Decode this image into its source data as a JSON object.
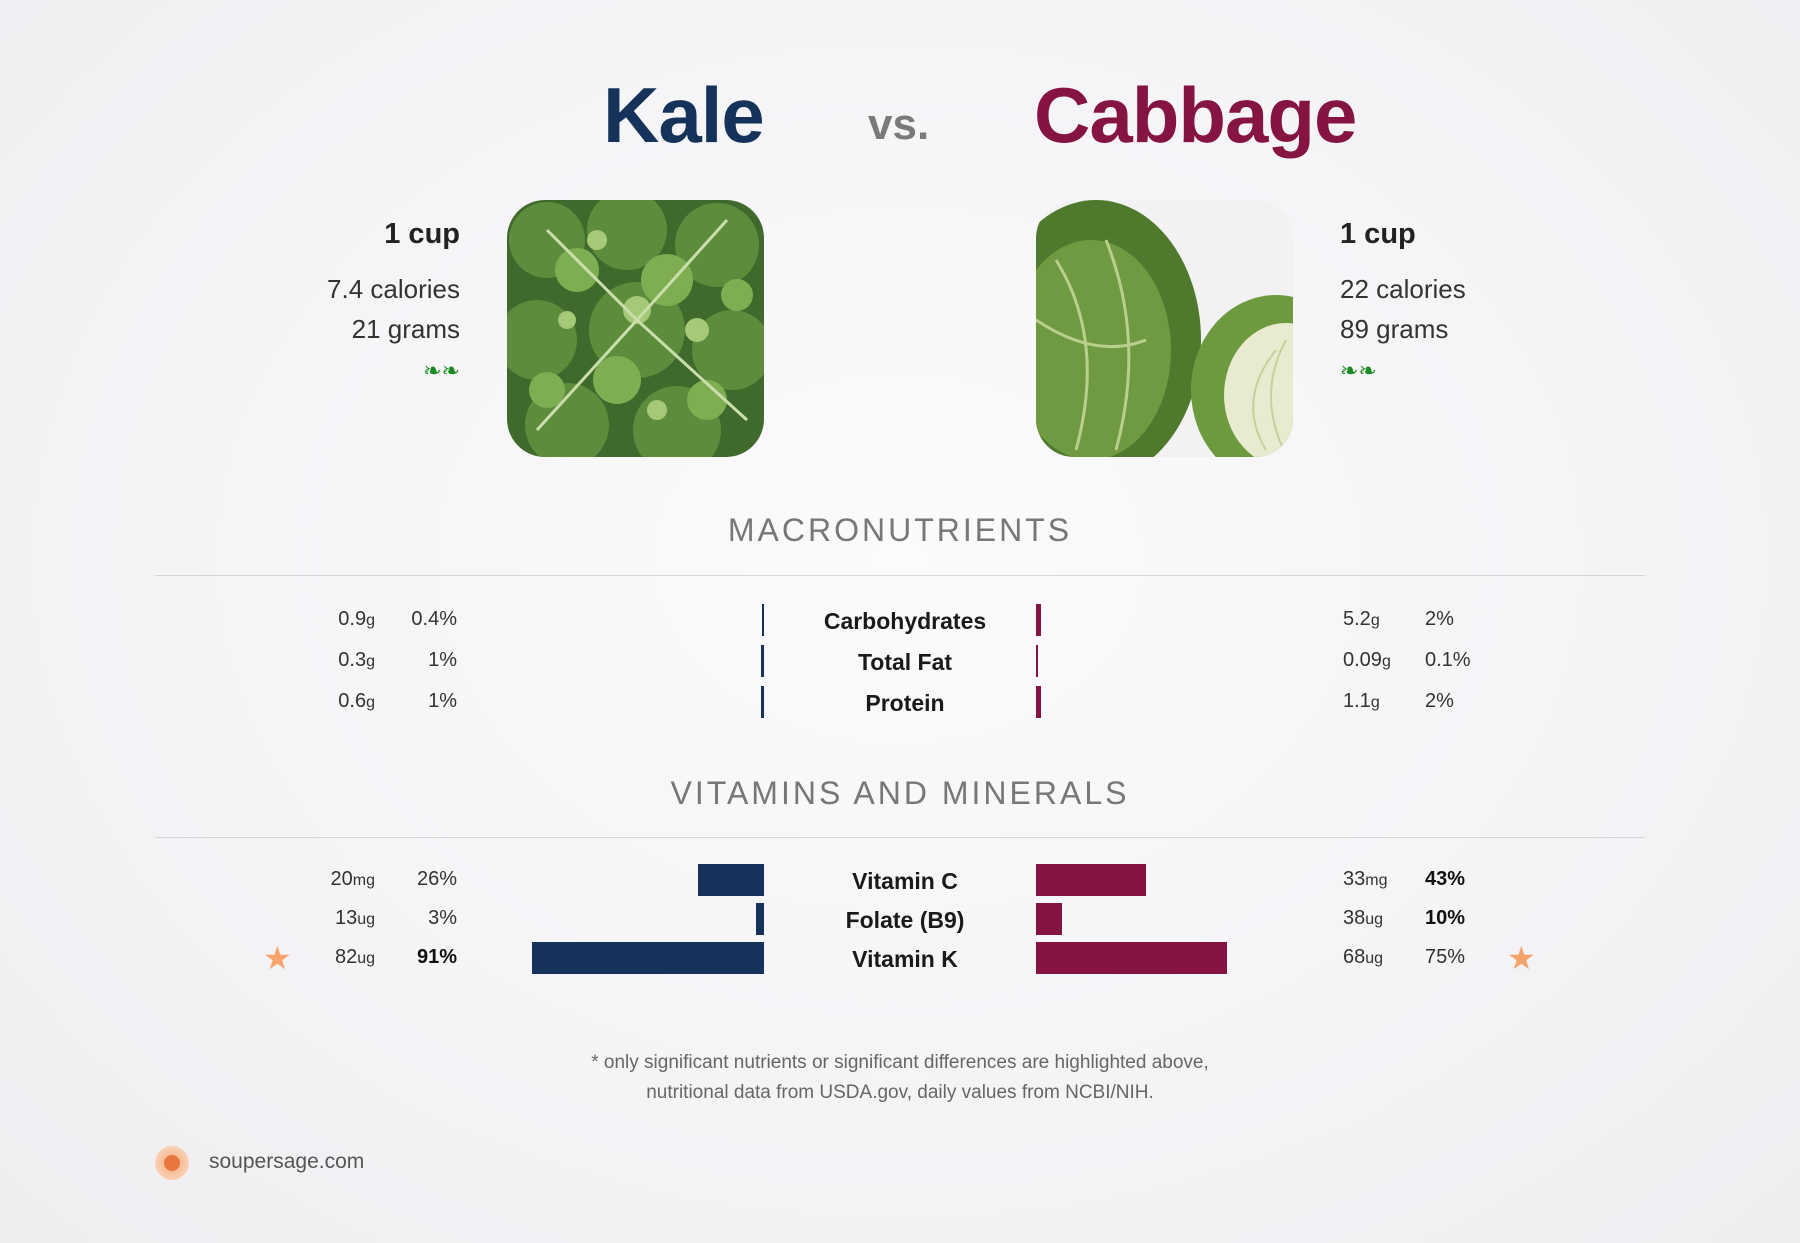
{
  "header": {
    "left_food": "Kale",
    "vs": "vs.",
    "right_food": "Cabbage"
  },
  "left": {
    "serving": "1 cup",
    "calories": "7.4 calories",
    "grams": "21 grams",
    "sprouts": "❧❧"
  },
  "right": {
    "serving": "1 cup",
    "calories": "22 calories",
    "grams": "89 grams",
    "sprouts": "❧❧"
  },
  "colors": {
    "kale": "#14325a",
    "cabbage": "#851443",
    "star": "#f5a36a",
    "sprout": "#1a8a22"
  },
  "sections": {
    "macro_title": "MACRONUTRIENTS",
    "vitamins_title": "VITAMINS AND MINERALS"
  },
  "chart_data": [
    {
      "type": "bar",
      "section": "MACRONUTRIENTS",
      "categories": [
        "Carbohydrates",
        "Total Fat",
        "Protein"
      ],
      "series": [
        {
          "name": "Kale",
          "amounts": [
            "0.9",
            "0.3",
            "0.6"
          ],
          "units": [
            "g",
            "g",
            "g"
          ],
          "percents": [
            0.4,
            1,
            1
          ],
          "percent_labels": [
            "0.4%",
            "1%",
            "1%"
          ]
        },
        {
          "name": "Cabbage",
          "amounts": [
            "5.2",
            "0.09",
            "1.1"
          ],
          "units": [
            "g",
            "g",
            "g"
          ],
          "percents": [
            2,
            0.1,
            2
          ],
          "percent_labels": [
            "2%",
            "0.1%",
            "2%"
          ]
        }
      ]
    },
    {
      "type": "bar",
      "section": "VITAMINS AND MINERALS",
      "categories": [
        "Vitamin C",
        "Folate (B9)",
        "Vitamin K"
      ],
      "series": [
        {
          "name": "Kale",
          "amounts": [
            "20",
            "13",
            "82"
          ],
          "units": [
            "mg",
            "ug",
            "ug"
          ],
          "percents": [
            26,
            3,
            91
          ],
          "percent_labels": [
            "26%",
            "3%",
            "91%"
          ],
          "bold": [
            false,
            false,
            true
          ],
          "stars": [
            false,
            false,
            true
          ]
        },
        {
          "name": "Cabbage",
          "amounts": [
            "33",
            "38",
            "68"
          ],
          "units": [
            "mg",
            "ug",
            "ug"
          ],
          "percents": [
            43,
            10,
            75
          ],
          "percent_labels": [
            "43%",
            "10%",
            "75%"
          ],
          "bold": [
            true,
            true,
            false
          ],
          "stars": [
            false,
            false,
            true
          ]
        }
      ]
    }
  ],
  "footer": {
    "note_line1": "* only significant nutrients or significant differences are highlighted above,",
    "note_line2": "nutritional data from USDA.gov, daily values from NCBI/NIH.",
    "brand": "soupersage.com"
  }
}
